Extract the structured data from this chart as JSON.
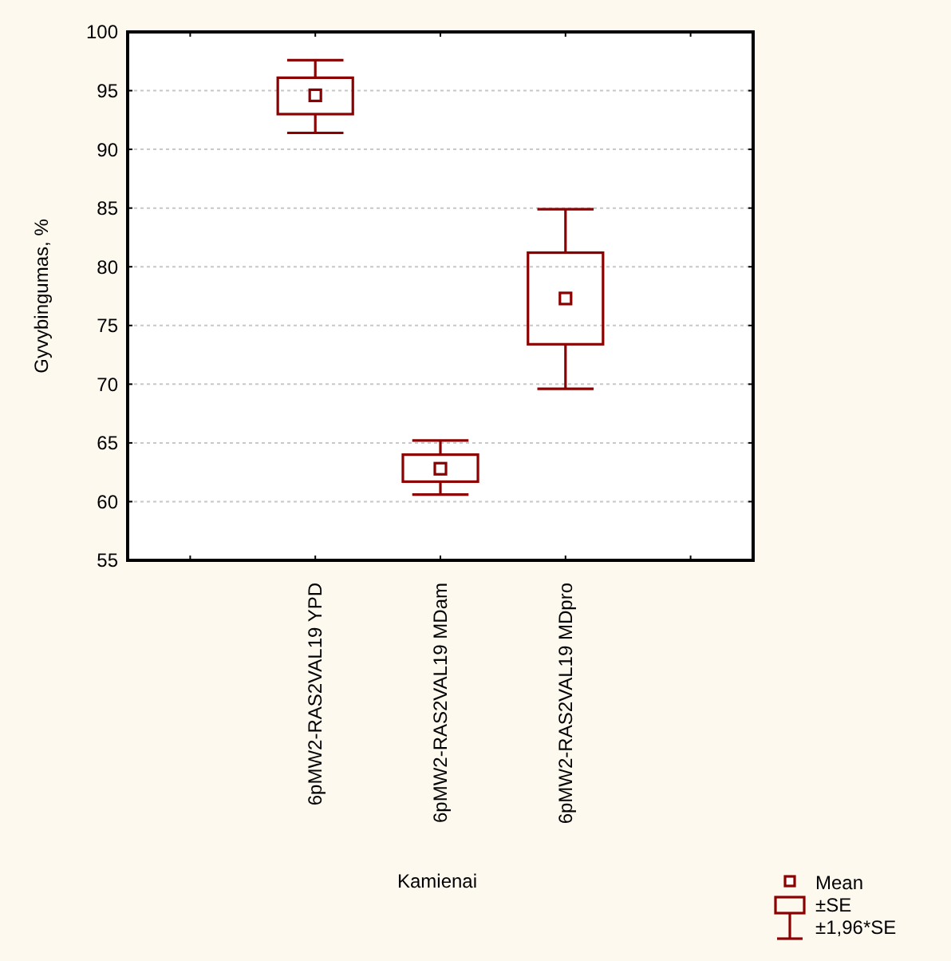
{
  "chart_data": {
    "type": "box",
    "xlabel": "Kamienai",
    "ylabel": "Gyvybingumas, %",
    "categories": [
      null,
      "6pMW2-RAS2VAL19 YPD",
      "6pMW2-RAS2VAL19 MDam",
      "6pMW2-RAS2VAL19 MDpro",
      null
    ],
    "color": "#8b0000",
    "boxes": [
      null,
      {
        "low": 91.4,
        "q1": 93.0,
        "median": 94.6,
        "q3": 96.1,
        "high": 97.6
      },
      {
        "low": 60.6,
        "q1": 61.7,
        "median": 62.8,
        "q3": 64.0,
        "high": 65.2
      },
      {
        "low": 69.6,
        "q1": 73.4,
        "median": 77.3,
        "q3": 81.2,
        "high": 84.9
      },
      null
    ],
    "ylim": [
      55,
      100
    ],
    "yticks": [
      55,
      60,
      65,
      70,
      75,
      80,
      85,
      90,
      95,
      100
    ],
    "grid": "y",
    "annotations": [
      "Mean",
      "±SE",
      "±1,96*SE"
    ]
  }
}
